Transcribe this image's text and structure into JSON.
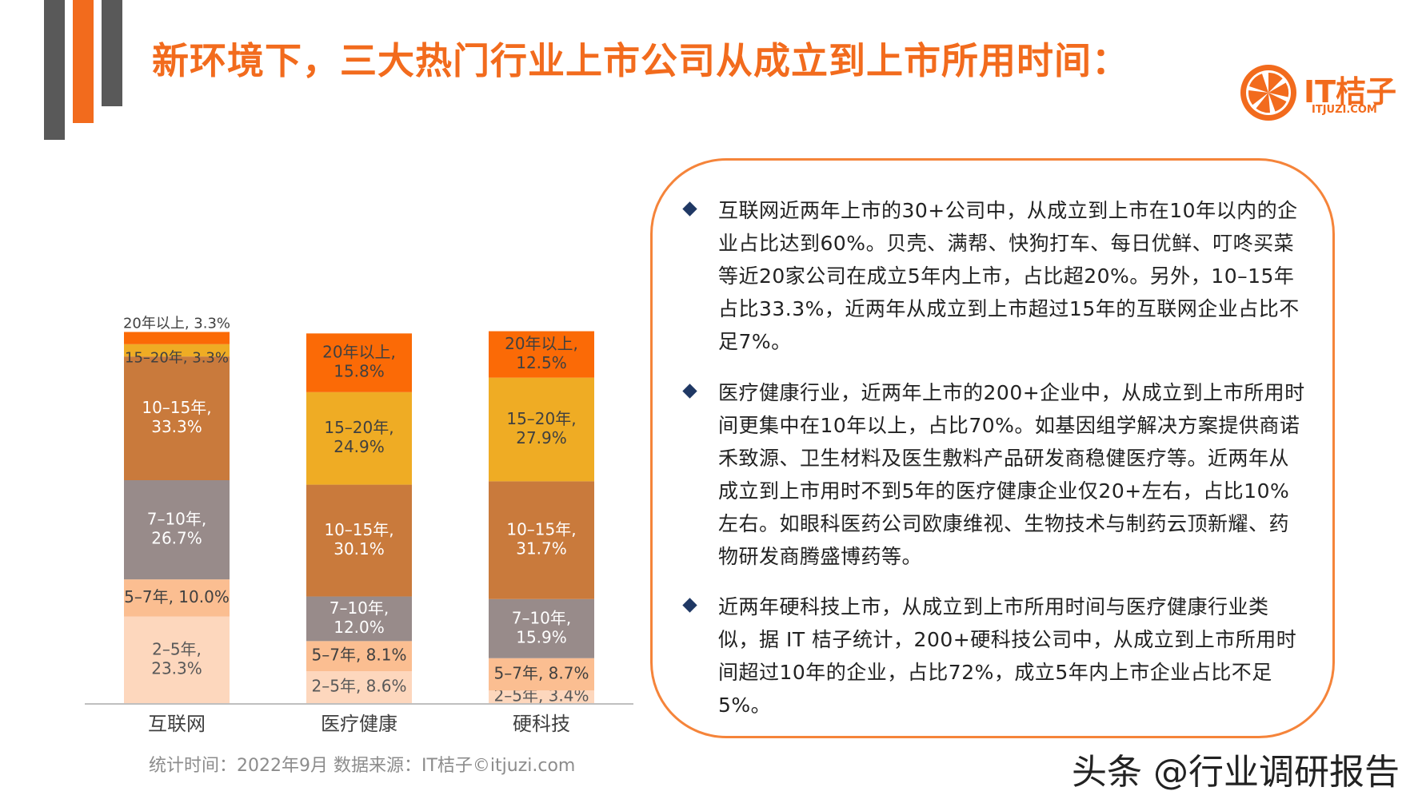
{
  "title": "新环境下，三大热门行业上市公司从成立到上市所用时间：",
  "logo": {
    "main": "IT桔子",
    "sub": "ITJUZI.COM",
    "icon": "orange-slice-icon"
  },
  "source": "统计时间：2022年9月  数据来源：IT桔子©itjuzi.com",
  "watermark": "头条 @行业调研报告",
  "colors": {
    "accent": "#f26b1d",
    "seg_20plus": "#fb6a06",
    "seg_15_20": "#efac24",
    "seg_10_15": "#c97a3c",
    "seg_7_10": "#988b8a",
    "seg_5_7": "#fbbe91",
    "seg_2_5": "#fdd7bd"
  },
  "chart_data": {
    "type": "bar",
    "stacked": true,
    "categories": [
      "互联网",
      "医疗健康",
      "硬科技"
    ],
    "ylim": [
      0,
      100
    ],
    "series": [
      {
        "name": "2-5年",
        "values": [
          23.3,
          8.6,
          3.4
        ],
        "labels": [
          "2–5年,\n23.3%",
          "2–5年, 8.6%",
          "2–5年, 3.4%"
        ]
      },
      {
        "name": "5-7年",
        "values": [
          10.0,
          8.1,
          8.7
        ],
        "labels": [
          "5–7年, 10.0%",
          "5–7年, 8.1%",
          "5–7年, 8.7%"
        ]
      },
      {
        "name": "7-10年",
        "values": [
          26.7,
          12.0,
          15.9
        ],
        "labels": [
          "7–10年,\n26.7%",
          "7–10年,\n12.0%",
          "7–10年,\n15.9%"
        ]
      },
      {
        "name": "10-15年",
        "values": [
          33.3,
          30.1,
          31.7
        ],
        "labels": [
          "10–15年,\n33.3%",
          "10–15年,\n30.1%",
          "10–15年,\n31.7%"
        ]
      },
      {
        "name": "15-20年",
        "values": [
          3.3,
          24.9,
          27.9
        ],
        "labels": [
          "15–20年, 3.3%",
          "15–20年,\n24.9%",
          "15–20年,\n27.9%"
        ]
      },
      {
        "name": "20年以上",
        "values": [
          3.3,
          15.8,
          12.5
        ],
        "labels": [
          "20年以上, 3.3%",
          "20年以上,\n15.8%",
          "20年以上,\n12.5%"
        ]
      }
    ]
  },
  "bullets": [
    "互联网近两年上市的30+公司中，从成立到上市在10年以内的企业占比达到60%。贝壳、满帮、快狗打车、每日优鲜、叮咚买菜等近20家公司在成立5年内上市，占比超20%。另外，10–15年占比33.3%，近两年从成立到上市超过15年的互联网企业占比不足7%。",
    "医疗健康行业，近两年上市的200+企业中，从成立到上市所用时间更集中在10年以上，占比70%。如基因组学解决方案提供商诺禾致源、卫生材料及医生敷料产品研发商稳健医疗等。近两年从成立到上市用时不到5年的医疗健康企业仅20+左右，占比10%左右。如眼科医药公司欧康维视、生物技术与制药云顶新耀、药物研发商腾盛博药等。",
    "近两年硬科技上市，从成立到上市所用时间与医疗健康行业类似，据 IT 桔子统计，200+硬科技公司中，从成立到上市所用时间超过10年的企业，占比72%，成立5年内上市企业占比不足5%。"
  ]
}
